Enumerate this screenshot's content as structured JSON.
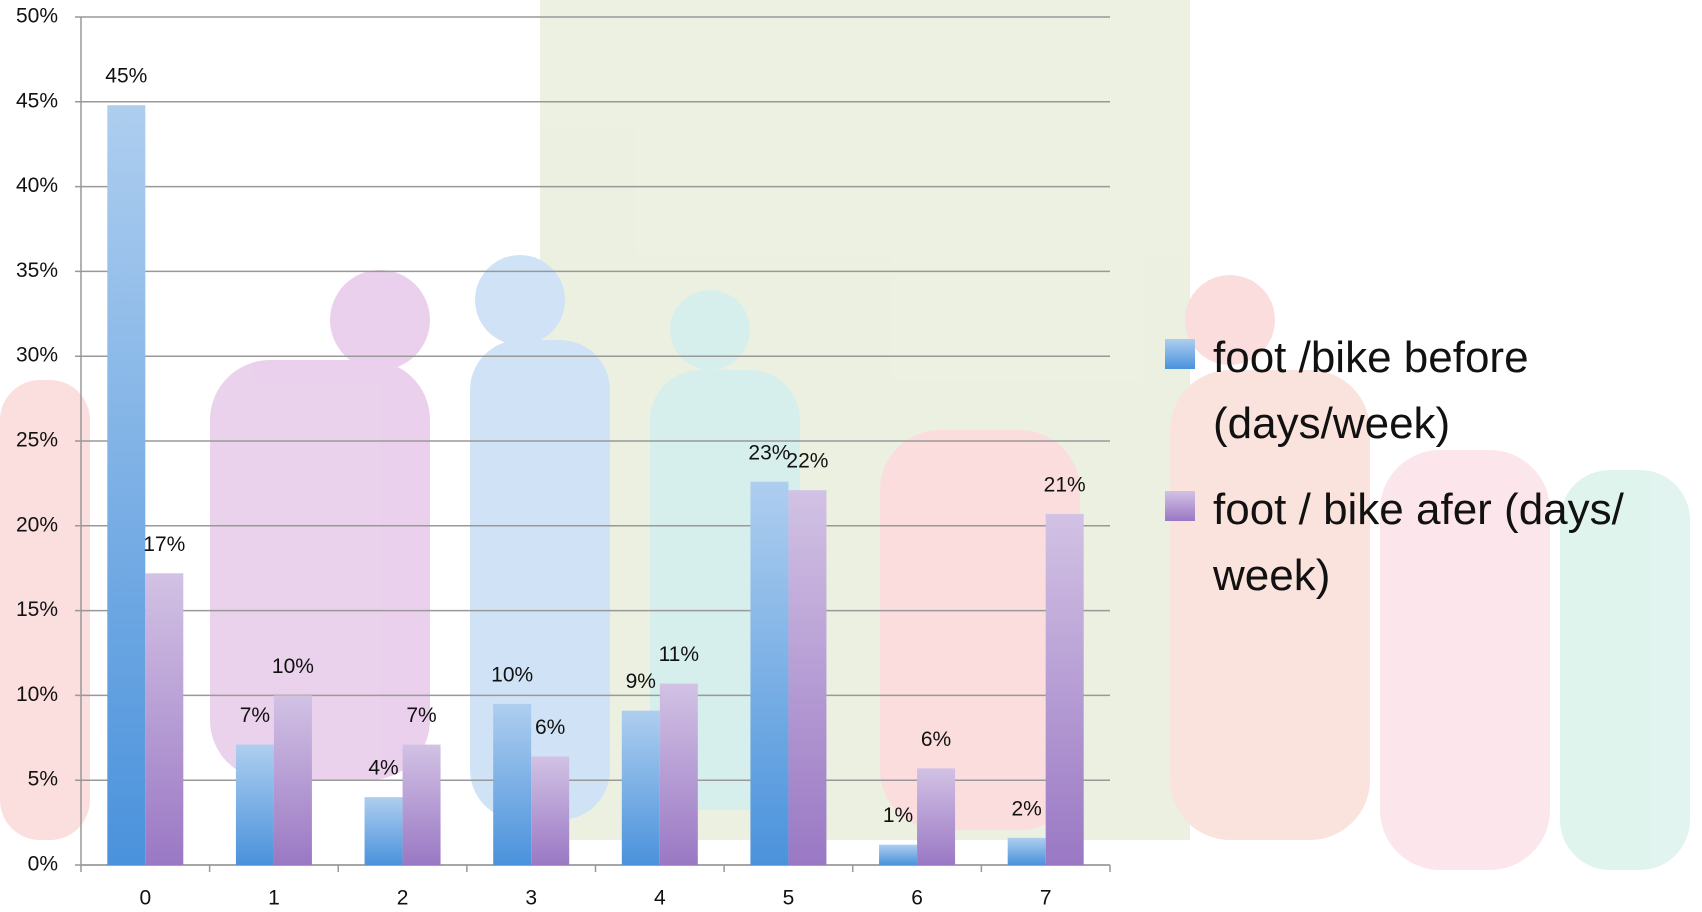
{
  "chart_data": {
    "type": "bar",
    "categories": [
      "0",
      "1",
      "2",
      "3",
      "4",
      "5",
      "6",
      "7"
    ],
    "series": [
      {
        "name": "foot /bike before (days/week)",
        "color": "#4a92dc",
        "values": [
          44.8,
          7.1,
          4.0,
          9.5,
          9.1,
          22.6,
          1.2,
          1.6
        ],
        "value_labels": [
          "45%",
          "7%",
          "4%",
          "10%",
          "9%",
          "23%",
          "1%",
          "2%"
        ]
      },
      {
        "name": "foot / bike afer (days/ week)",
        "color": "#9a78c4",
        "values": [
          17.2,
          10.0,
          7.1,
          6.4,
          10.7,
          22.1,
          5.7,
          20.7
        ],
        "value_labels": [
          "17%",
          "10%",
          "7%",
          "6%",
          "11%",
          "22%",
          "6%",
          "21%"
        ]
      }
    ],
    "ylim": [
      0,
      50
    ],
    "yticks": [
      {
        "value": 0,
        "label": "0%"
      },
      {
        "value": 5,
        "label": "5%"
      },
      {
        "value": 10,
        "label": "10%"
      },
      {
        "value": 15,
        "label": "15%"
      },
      {
        "value": 20,
        "label": "20%"
      },
      {
        "value": 25,
        "label": "25%"
      },
      {
        "value": 30,
        "label": "30%"
      },
      {
        "value": 35,
        "label": "35%"
      },
      {
        "value": 40,
        "label": "40%"
      },
      {
        "value": 45,
        "label": "45%"
      },
      {
        "value": 50,
        "label": "50%"
      }
    ],
    "grid": true,
    "legend": "right"
  }
}
